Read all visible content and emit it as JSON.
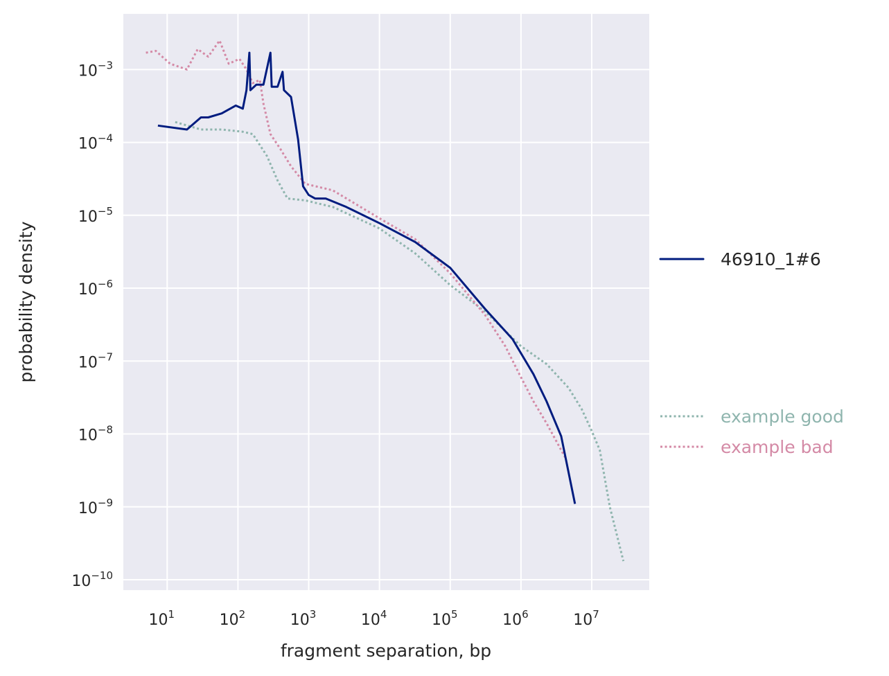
{
  "chart_data": {
    "type": "line",
    "xlabel": "fragment separation, bp",
    "ylabel": "probability density",
    "xscale": "log",
    "yscale": "log",
    "xlim": [
      2.4,
      65000000.0
    ],
    "ylim": [
      7.2e-11,
      0.0058
    ],
    "grid": true,
    "background": "#eaeaf2",
    "legend_placement": "right-outside",
    "x_ticks": [
      {
        "base": "10",
        "exp": "1",
        "value": 10
      },
      {
        "base": "10",
        "exp": "2",
        "value": 100
      },
      {
        "base": "10",
        "exp": "3",
        "value": 1000
      },
      {
        "base": "10",
        "exp": "4",
        "value": 10000
      },
      {
        "base": "10",
        "exp": "5",
        "value": 100000
      },
      {
        "base": "10",
        "exp": "6",
        "value": 1000000
      },
      {
        "base": "10",
        "exp": "7",
        "value": 10000000
      }
    ],
    "y_ticks": [
      {
        "base": "10",
        "exp": "−3",
        "value": 0.001
      },
      {
        "base": "10",
        "exp": "−4",
        "value": 0.0001
      },
      {
        "base": "10",
        "exp": "−5",
        "value": 1e-05
      },
      {
        "base": "10",
        "exp": "−6",
        "value": 1e-06
      },
      {
        "base": "10",
        "exp": "−7",
        "value": 1e-07
      },
      {
        "base": "10",
        "exp": "−8",
        "value": 1e-08
      },
      {
        "base": "10",
        "exp": "−9",
        "value": 1e-09
      },
      {
        "base": "10",
        "exp": "−10",
        "value": 1e-10
      }
    ],
    "series": [
      {
        "name": "46910_1#6",
        "color": "#001c7f",
        "style": "solid",
        "x": [
          7.4,
          19,
          30,
          38,
          59,
          93,
          117,
          132,
          145,
          150,
          182,
          229,
          288,
          300,
          363,
          427,
          447,
          562,
          708,
          832,
          1000,
          1230,
          1740,
          3390,
          10000.0,
          32000.0,
          100000.0,
          310000.0,
          760000.0,
          1500000.0,
          2300000.0,
          3700000.0,
          5800000.0
        ],
        "y": [
          0.00017,
          0.00015,
          0.00022,
          0.00022,
          0.00025,
          0.00032,
          0.00029,
          0.00052,
          0.0017,
          0.00052,
          0.00062,
          0.00062,
          0.0017,
          0.00058,
          0.00058,
          0.00093,
          0.00052,
          0.00042,
          0.00011,
          2.5e-05,
          1.9e-05,
          1.7e-05,
          1.7e-05,
          1.3e-05,
          7.8e-06,
          4.3e-06,
          1.9e-06,
          5.2e-07,
          2e-07,
          6.6e-08,
          2.8e-08,
          9.3e-09,
          1.1e-09
        ]
      },
      {
        "name": "example good",
        "color": "#8fb5ae",
        "style": "dotted",
        "x": [
          13,
          30,
          59,
          117,
          162,
          257,
          363,
          501,
          891,
          2190,
          10000.0,
          32000.0,
          100000.0,
          310000.0,
          1000000.0,
          2300000.0,
          4700000.0,
          7200000.0,
          10000000.0,
          13000000.0,
          18000000.0,
          28000000.0
        ],
        "y": [
          0.00019,
          0.00015,
          0.00015,
          0.00014,
          0.00013,
          6.5e-05,
          3e-05,
          1.7e-05,
          1.6e-05,
          1.3e-05,
          6.6e-06,
          3e-06,
          1.1e-06,
          4.8e-07,
          1.6e-07,
          9.1e-08,
          4.3e-08,
          2.2e-08,
          1.1e-08,
          6e-09,
          1e-09,
          1.8e-10
        ]
      },
      {
        "name": "example bad",
        "color": "#d48aa6",
        "style": "dotted",
        "x": [
          5.0,
          6.9,
          11,
          19,
          27,
          38,
          55,
          74,
          105,
          132,
          162,
          204,
          229,
          288,
          398,
          562,
          891,
          2190,
          10000.0,
          32000.0,
          100000.0,
          310000.0,
          600000.0,
          950000.0,
          1500000.0,
          2300000.0,
          4200000.0
        ],
        "y": [
          0.0017,
          0.0018,
          0.0012,
          0.001,
          0.0019,
          0.0015,
          0.0025,
          0.0012,
          0.0014,
          0.001,
          0.00065,
          0.00072,
          0.00034,
          0.00013,
          8.1e-05,
          4.7e-05,
          2.7e-05,
          2.2e-05,
          9.1e-06,
          4.7e-06,
          1.6e-06,
          4.3e-07,
          1.6e-07,
          6.6e-08,
          2.8e-08,
          1.4e-08,
          4.8e-09
        ]
      }
    ]
  }
}
